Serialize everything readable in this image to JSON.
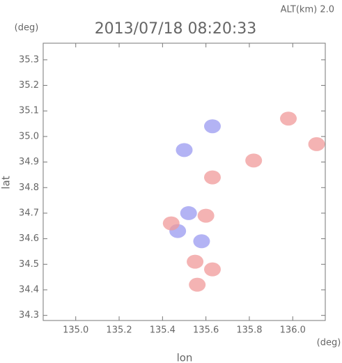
{
  "chart_data": {
    "type": "scatter",
    "title": "2013/07/18 08:20:33",
    "annotation": "ALT(km) 2.0",
    "y_unit": "(deg)",
    "x_unit": "(deg)",
    "xlabel": "lon",
    "ylabel": "lat",
    "xlim": [
      134.85,
      136.15
    ],
    "ylim": [
      34.28,
      35.365
    ],
    "xticks": [
      {
        "value": 135,
        "label": "135.0"
      },
      135.2,
      135.4,
      135.6,
      135.8,
      {
        "value": 136,
        "label": "136.0"
      }
    ],
    "yticks": [
      34.3,
      34.4,
      34.5,
      34.6,
      34.7,
      34.8,
      34.9,
      {
        "value": 35,
        "label": "35.0"
      },
      35.1,
      35.2,
      35.3
    ],
    "series": [
      {
        "color": "#9a9af0",
        "x": [
          135.5,
          135.63,
          135.47,
          135.58,
          135.52
        ],
        "values": [
          34.947,
          35.04,
          34.63,
          34.59,
          34.7
        ]
      },
      {
        "color": "#f09a9a",
        "x": [
          135.63,
          135.82,
          135.98,
          136.11,
          135.44,
          135.55,
          135.63,
          135.56,
          135.6
        ],
        "values": [
          34.84,
          34.906,
          35.07,
          34.97,
          34.66,
          34.51,
          34.48,
          34.42,
          34.69
        ]
      }
    ]
  }
}
